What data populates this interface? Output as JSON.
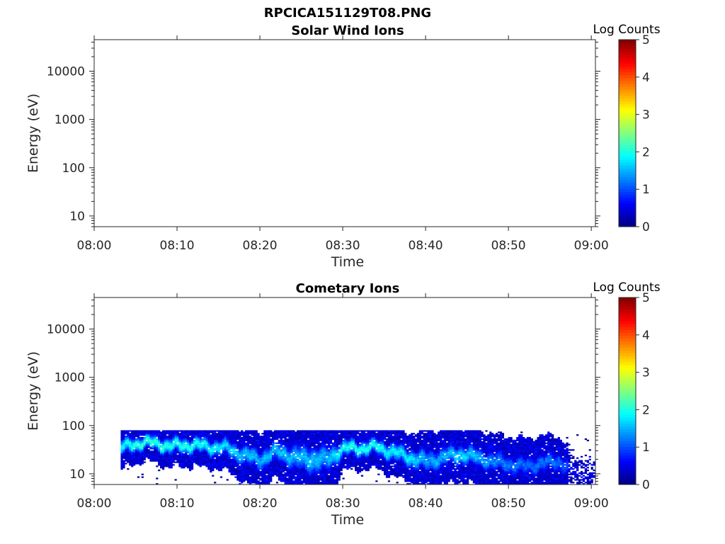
{
  "figure_title": "RPCICA151129T08.PNG",
  "colors": {
    "frame": "#262626",
    "background": "#ffffff",
    "colormap": "jet"
  },
  "chart_data": [
    {
      "type": "heatmap",
      "title": "Solar Wind Ions",
      "xlabel": "Time",
      "ylabel": "Energy (eV)",
      "x_tick_labels": [
        "08:00",
        "08:10",
        "08:20",
        "08:30",
        "08:40",
        "08:50",
        "09:00"
      ],
      "x_ticks_minutes": [
        0,
        10,
        20,
        30,
        40,
        50,
        60
      ],
      "xlim_minutes": [
        0,
        60.5
      ],
      "y_scale": "log",
      "y_tick_labels": [
        "10",
        "100",
        "1000",
        "10000"
      ],
      "y_ticks": [
        10,
        100,
        1000,
        10000
      ],
      "ylim": [
        6,
        45000
      ],
      "colorbar": {
        "label": "Log Counts",
        "tick_labels": [
          "0",
          "1",
          "2",
          "3",
          "4",
          "5"
        ],
        "range": [
          0,
          5
        ]
      },
      "bands": []
    },
    {
      "type": "heatmap",
      "title": "Cometary Ions",
      "xlabel": "Time",
      "ylabel": "Energy (eV)",
      "x_tick_labels": [
        "08:00",
        "08:10",
        "08:20",
        "08:30",
        "08:40",
        "08:50",
        "09:00"
      ],
      "x_ticks_minutes": [
        0,
        10,
        20,
        30,
        40,
        50,
        60
      ],
      "xlim_minutes": [
        0,
        60.5
      ],
      "y_scale": "log",
      "y_tick_labels": [
        "10",
        "100",
        "1000",
        "10000"
      ],
      "y_ticks": [
        10,
        100,
        1000,
        10000
      ],
      "ylim": [
        6,
        45000
      ],
      "colorbar": {
        "label": "Log Counts",
        "tick_labels": [
          "0",
          "1",
          "2",
          "3",
          "4",
          "5"
        ],
        "range": [
          0,
          5
        ]
      },
      "energy_max_eV": 80,
      "bands": [
        {
          "t": 3.5,
          "center": 36,
          "half_width_decades": 0.14,
          "peak": 1.9
        },
        {
          "t": 6.0,
          "center": 46,
          "half_width_decades": 0.12,
          "peak": 2.2
        },
        {
          "t": 9.0,
          "center": 38,
          "half_width_decades": 0.14,
          "peak": 2.0
        },
        {
          "t": 12.0,
          "center": 40,
          "half_width_decades": 0.14,
          "peak": 2.0
        },
        {
          "t": 14.0,
          "center": 36,
          "half_width_decades": 0.14,
          "peak": 1.9
        },
        {
          "t": 16.0,
          "center": 34,
          "half_width_decades": 0.15,
          "peak": 1.7
        },
        {
          "t": 18.0,
          "center": 24,
          "half_width_decades": 0.18,
          "peak": 1.6
        },
        {
          "t": 20.0,
          "center": 20,
          "half_width_decades": 0.18,
          "peak": 1.5
        },
        {
          "t": 22.0,
          "center": 30,
          "half_width_decades": 0.18,
          "peak": 1.6
        },
        {
          "t": 24.0,
          "center": 22,
          "half_width_decades": 0.22,
          "peak": 1.5
        },
        {
          "t": 26.0,
          "center": 20,
          "half_width_decades": 0.26,
          "peak": 1.6
        },
        {
          "t": 28.0,
          "center": 20,
          "half_width_decades": 0.24,
          "peak": 1.5
        },
        {
          "t": 30.0,
          "center": 34,
          "half_width_decades": 0.14,
          "peak": 2.0
        },
        {
          "t": 32.0,
          "center": 34,
          "half_width_decades": 0.14,
          "peak": 2.0
        },
        {
          "t": 34.0,
          "center": 36,
          "half_width_decades": 0.14,
          "peak": 1.9
        },
        {
          "t": 36.0,
          "center": 28,
          "half_width_decades": 0.16,
          "peak": 1.8
        },
        {
          "t": 38.0,
          "center": 22,
          "half_width_decades": 0.16,
          "peak": 1.8
        },
        {
          "t": 40.0,
          "center": 18,
          "half_width_decades": 0.2,
          "peak": 1.4
        },
        {
          "t": 42.0,
          "center": 22,
          "half_width_decades": 0.18,
          "peak": 1.5
        },
        {
          "t": 44.0,
          "center": 26,
          "half_width_decades": 0.18,
          "peak": 1.7
        },
        {
          "t": 46.0,
          "center": 22,
          "half_width_decades": 0.18,
          "peak": 1.5
        },
        {
          "t": 48.0,
          "center": 18,
          "half_width_decades": 0.18,
          "peak": 1.3
        },
        {
          "t": 50.0,
          "center": 16,
          "half_width_decades": 0.18,
          "peak": 1.2
        },
        {
          "t": 52.0,
          "center": 14,
          "half_width_decades": 0.18,
          "peak": 1.1
        },
        {
          "t": 54.0,
          "center": 17,
          "half_width_decades": 0.18,
          "peak": 1.2
        },
        {
          "t": 56.0,
          "center": 18,
          "half_width_decades": 0.16,
          "peak": 1.2
        },
        {
          "t": 58.0,
          "center": 10,
          "half_width_decades": 0.15,
          "peak": 0.7
        },
        {
          "t": 60.0,
          "center": 9,
          "half_width_decades": 0.15,
          "peak": 0.6
        }
      ],
      "data_start_minutes": 3.2,
      "dense_end_minutes": 57
    }
  ]
}
